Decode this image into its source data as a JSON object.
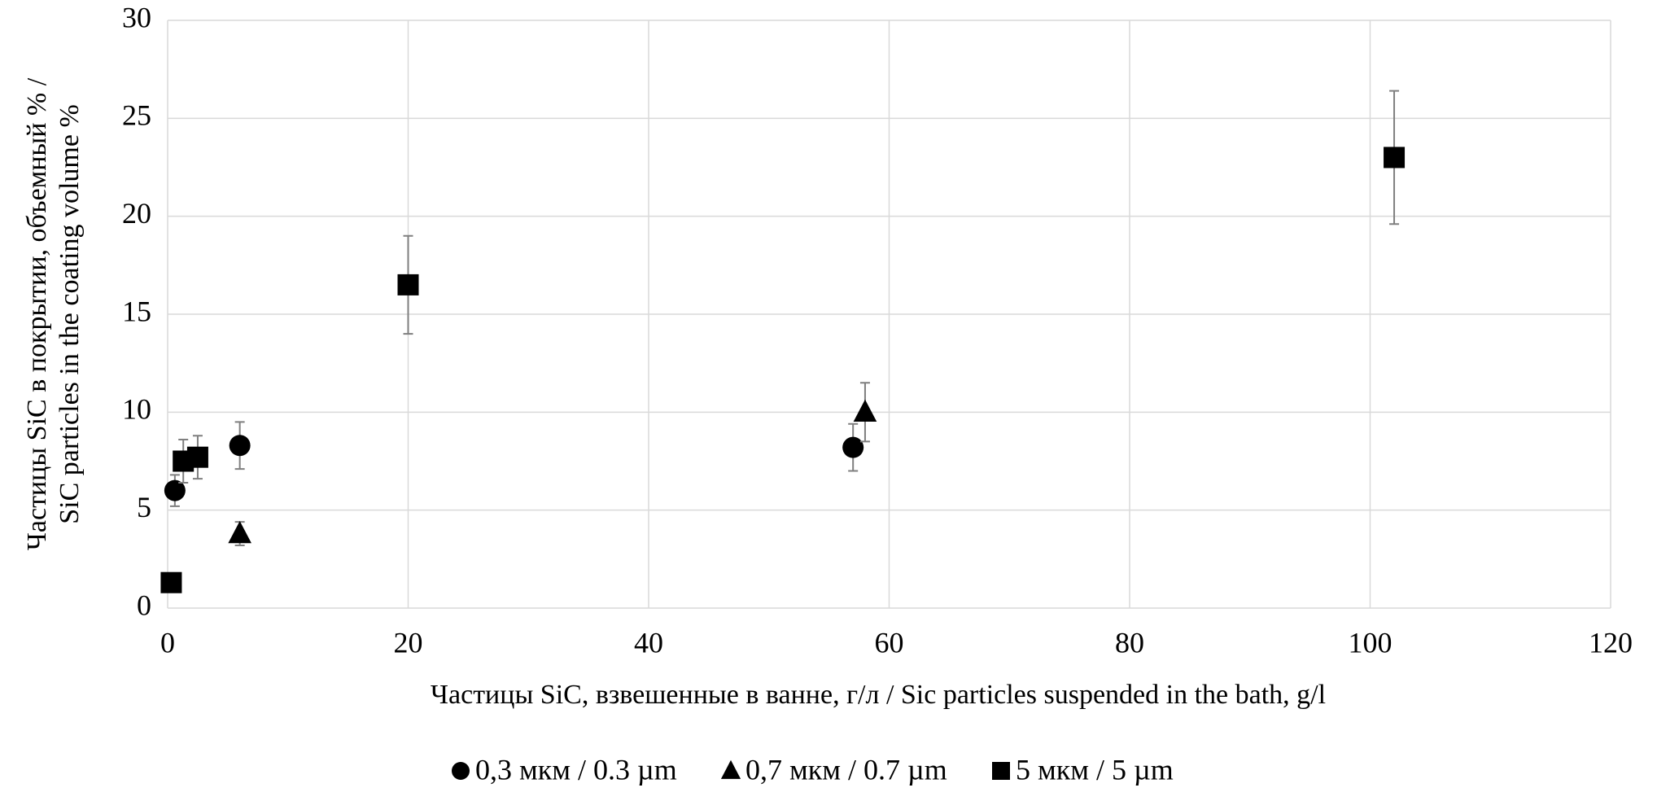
{
  "chart_data": {
    "type": "scatter",
    "xlabel": "Частицы SiC, взвешенные в ванне, г/л / Sic particles suspended in the bath, g/l",
    "ylabel": [
      "Частицы SiC в покрытии, объемный % /",
      "SiC particles in the coating volume %"
    ],
    "xlim": [
      0,
      120
    ],
    "xticks": [
      0,
      20,
      40,
      60,
      80,
      100,
      120
    ],
    "ylim": [
      0,
      30
    ],
    "yticks": [
      0,
      5,
      10,
      15,
      20,
      25,
      30
    ],
    "grid": true,
    "legend": "bottom",
    "error_color": "#7f7f7f",
    "series": [
      {
        "name": "0,3 мкм / 0.3 µm",
        "marker": "circle",
        "color": "#000000",
        "x": [
          0.6,
          6,
          57
        ],
        "values": [
          6.0,
          8.3,
          8.2
        ],
        "errors": [
          0.8,
          1.2,
          1.2
        ]
      },
      {
        "name": "0,7 мкм / 0.7 µm",
        "marker": "triangle",
        "color": "#000000",
        "x": [
          6,
          58
        ],
        "values": [
          3.8,
          10.0
        ],
        "errors": [
          0.6,
          1.5
        ]
      },
      {
        "name": "5 мкм / 5 µm",
        "marker": "square",
        "color": "#000000",
        "x": [
          0.3,
          1.3,
          2.5,
          20,
          102
        ],
        "values": [
          1.3,
          7.5,
          7.7,
          16.5,
          23.0
        ],
        "errors": [
          0.2,
          1.1,
          1.1,
          2.5,
          3.4
        ]
      }
    ]
  }
}
